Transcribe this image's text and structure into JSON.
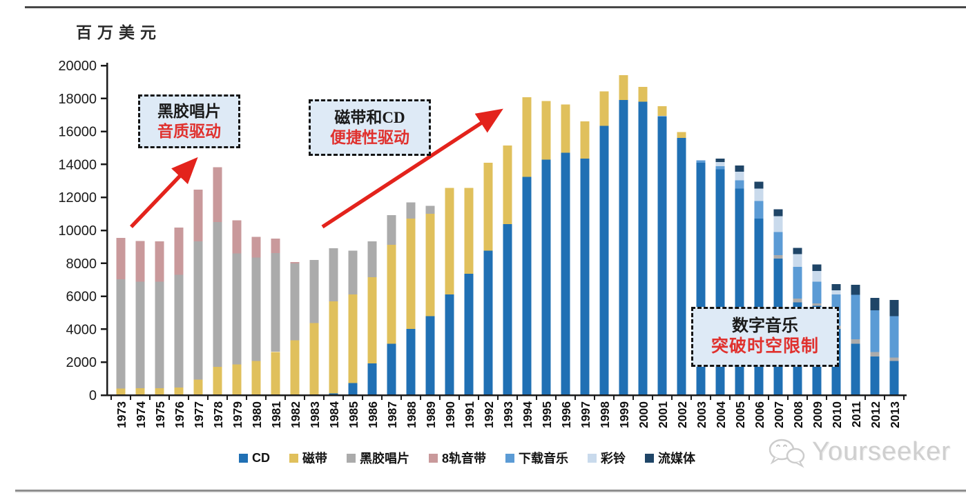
{
  "page": {
    "watermark": "Yourseeker"
  },
  "annotations": [
    {
      "line1": "黑胶唱片",
      "line2": "音质驱动"
    },
    {
      "line1": "磁带和CD",
      "line2": "便捷性驱动"
    },
    {
      "line1": "数字音乐",
      "line2": "突破时空限制"
    }
  ],
  "chart_data": {
    "type": "bar",
    "stacked": true,
    "unit_label": "百万美元",
    "xlabel": "",
    "ylabel": "百万美元",
    "ylim": [
      0,
      20000
    ],
    "ytick_step": 2000,
    "yticks": [
      0,
      2000,
      4000,
      6000,
      8000,
      10000,
      12000,
      14000,
      16000,
      18000,
      20000
    ],
    "ytick_labels": [
      "0",
      "2000",
      "4000",
      "6000",
      "8000",
      "10000",
      "12000",
      "14000",
      "16000",
      "18000",
      "20000"
    ],
    "grid": false,
    "legend_position": "bottom",
    "categories": [
      "1973",
      "1974",
      "1975",
      "1976",
      "1977",
      "1978",
      "1979",
      "1980",
      "1981",
      "1982",
      "1983",
      "1984",
      "1985",
      "1986",
      "1987",
      "1988",
      "1989",
      "1990",
      "1991",
      "1992",
      "1993",
      "1994",
      "1995",
      "1996",
      "1997",
      "1998",
      "1999",
      "2000",
      "2001",
      "2002",
      "2003",
      "2004",
      "2005",
      "2006",
      "2007",
      "2008",
      "2009",
      "2010",
      "2011",
      "2012",
      "2013"
    ],
    "series": [
      {
        "name": "CD",
        "color": "#2070B4",
        "values": [
          0,
          0,
          0,
          0,
          0,
          0,
          0,
          0,
          0,
          0,
          0,
          115,
          740,
          1925,
          3115,
          4020,
          4790,
          6115,
          7370,
          8770,
          10375,
          13235,
          14280,
          14700,
          14355,
          16335,
          17915,
          17815,
          16935,
          15610,
          14100,
          13700,
          12540,
          10720,
          8280,
          5630,
          5415,
          4015,
          3115,
          2345,
          2070
        ]
      },
      {
        "name": "磁带",
        "color": "#E0C05C",
        "values": [
          390,
          420,
          420,
          460,
          950,
          1715,
          1860,
          2070,
          2625,
          3325,
          4370,
          5580,
          5375,
          5235,
          6000,
          6700,
          6210,
          6450,
          5195,
          5330,
          4770,
          4845,
          3560,
          2930,
          2260,
          2100,
          1505,
          890,
          600,
          350,
          0,
          0,
          0,
          0,
          0,
          0,
          0,
          0,
          0,
          0,
          0
        ]
      },
      {
        "name": "黑胶唱片",
        "color": "#ABABAB",
        "values": [
          6630,
          6465,
          6465,
          6845,
          8375,
          8795,
          6740,
          6280,
          6005,
          4675,
          3840,
          3210,
          2650,
          2165,
          1815,
          980,
          490,
          0,
          0,
          0,
          0,
          0,
          0,
          0,
          0,
          0,
          0,
          0,
          0,
          0,
          0,
          0,
          0,
          0,
          210,
          235,
          140,
          200,
          275,
          280,
          210
        ]
      },
      {
        "name": "8轨音带",
        "color": "#C9999B",
        "values": [
          2515,
          2470,
          2440,
          2855,
          3140,
          3325,
          2010,
          1255,
          865,
          70,
          0,
          0,
          0,
          0,
          0,
          0,
          0,
          0,
          0,
          0,
          0,
          0,
          0,
          0,
          0,
          0,
          0,
          0,
          0,
          0,
          0,
          0,
          0,
          0,
          0,
          0,
          0,
          0,
          0,
          0,
          0
        ]
      },
      {
        "name": "下载音乐",
        "color": "#5B9BD5",
        "values": [
          0,
          0,
          0,
          0,
          0,
          0,
          0,
          0,
          0,
          0,
          0,
          0,
          0,
          0,
          0,
          0,
          0,
          0,
          0,
          0,
          0,
          0,
          0,
          0,
          0,
          0,
          0,
          0,
          0,
          0,
          150,
          200,
          490,
          1050,
          1395,
          1925,
          1330,
          1900,
          2700,
          2515,
          2510
        ]
      },
      {
        "name": "彩铃",
        "color": "#C9DAEC",
        "values": [
          0,
          0,
          0,
          0,
          0,
          0,
          0,
          0,
          0,
          0,
          0,
          0,
          0,
          0,
          0,
          0,
          0,
          0,
          0,
          0,
          0,
          0,
          0,
          0,
          0,
          0,
          0,
          0,
          0,
          0,
          0,
          250,
          530,
          770,
          980,
          770,
          655,
          250,
          0,
          0,
          0
        ]
      },
      {
        "name": "流媒体",
        "color": "#1F4567",
        "values": [
          0,
          0,
          0,
          0,
          0,
          0,
          0,
          0,
          0,
          0,
          0,
          0,
          0,
          0,
          0,
          0,
          0,
          0,
          0,
          0,
          0,
          0,
          0,
          0,
          0,
          0,
          0,
          0,
          0,
          0,
          0,
          200,
          375,
          420,
          420,
          375,
          390,
          380,
          610,
          765,
          975
        ]
      }
    ]
  }
}
